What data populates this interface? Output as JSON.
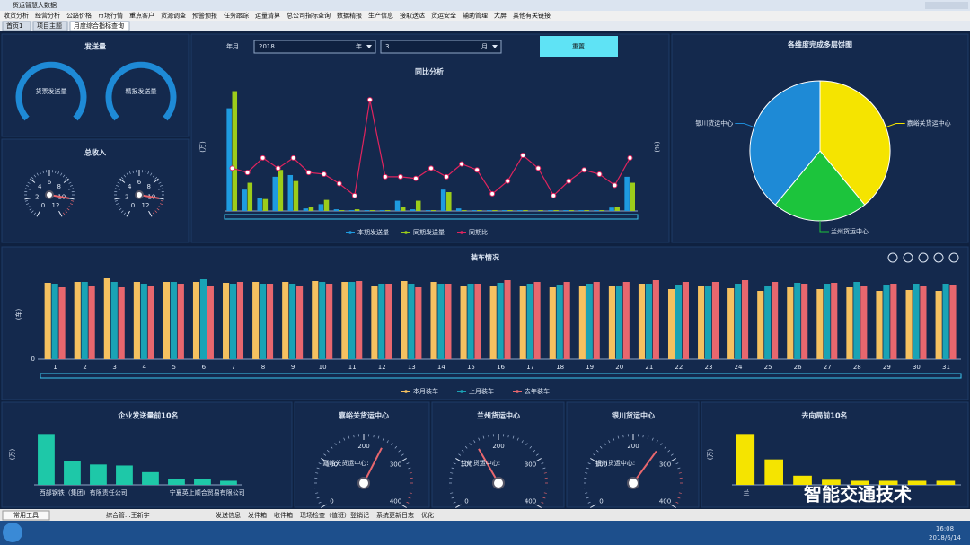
{
  "window_title": "货运智慧大数据",
  "menu": [
    "收货分析",
    "经营分析",
    "公路价格",
    "市场行情",
    "重点客户",
    "货源调查",
    "预警预报",
    "任务跟踪",
    "运量清算",
    "总公司指标查询",
    "数据精报",
    "生产信息",
    "接取送达",
    "货运安全",
    "辅助管理",
    "大屏",
    "其他有关链接"
  ],
  "tabs": [
    "首页1",
    "项目主题",
    "月度综合指标查询"
  ],
  "panels": {
    "send": "发送量",
    "income": "总收入"
  },
  "send_gauges": [
    "货票发送量",
    "精报发送量"
  ],
  "filters": {
    "label": "年月",
    "year": "2018",
    "year_unit": "年",
    "month": "3",
    "month_unit": "月",
    "reset": "重置"
  },
  "chart_data": [
    {
      "type": "bar",
      "title": "同比分析",
      "y_label": "(万)",
      "y2_label": "(%)",
      "categories": [
        null,
        null,
        null,
        null,
        null,
        null,
        null,
        null,
        null,
        null,
        null,
        null,
        null,
        null,
        null,
        null,
        null,
        null,
        null,
        null,
        null,
        null,
        null,
        null,
        null,
        null,
        null
      ],
      "ylim": [
        0,
        150
      ],
      "y2lim": [
        0,
        150
      ],
      "series": [
        {
          "name": "本期发送量",
          "color": "#1e9be0",
          "values": [
            120,
            25,
            15,
            40,
            42,
            3,
            8,
            2,
            1,
            1,
            1,
            12,
            2,
            1,
            25,
            3,
            1,
            1,
            1,
            1,
            0,
            1,
            1,
            1,
            1,
            4,
            40
          ]
        },
        {
          "name": "同期发送量",
          "color": "#9ccc1a",
          "values": [
            140,
            33,
            14,
            48,
            35,
            5,
            13,
            1,
            2,
            1,
            1,
            5,
            12,
            1,
            22,
            1,
            1,
            1,
            1,
            1,
            1,
            1,
            1,
            1,
            1,
            5,
            33
          ]
        },
        {
          "name": "同期比",
          "color": "#e0245e",
          "type": "line",
          "axis": "y2",
          "values": [
            50,
            45,
            62,
            50,
            62,
            45,
            43,
            32,
            18,
            130,
            40,
            40,
            38,
            50,
            40,
            55,
            48,
            20,
            35,
            65,
            50,
            18,
            35,
            48,
            43,
            30,
            62
          ]
        }
      ]
    },
    {
      "type": "pie",
      "title": "各维度完成多层饼图",
      "categories": [
        "嘉峪关货运中心",
        "兰州货运中心",
        "银川货运中心"
      ],
      "values": [
        39,
        22,
        39
      ],
      "colors": [
        "#f5e400",
        "#1cc43c",
        "#1e8ad6"
      ]
    },
    {
      "type": "bar",
      "title": "装车情况",
      "y_label": "(车)",
      "categories": [
        1,
        2,
        3,
        4,
        5,
        6,
        7,
        8,
        9,
        10,
        11,
        12,
        13,
        14,
        15,
        16,
        17,
        18,
        19,
        20,
        21,
        22,
        23,
        24,
        25,
        26,
        27,
        28,
        29,
        30,
        31
      ],
      "ylim": [
        0,
        100
      ],
      "yticks": [
        0
      ],
      "series": [
        {
          "name": "本月装车",
          "color": "#f5c160",
          "values": [
            85,
            86,
            90,
            86,
            86,
            86,
            85,
            86,
            86,
            87,
            86,
            82,
            87,
            86,
            82,
            81,
            82,
            80,
            82,
            82,
            84,
            78,
            81,
            79,
            76,
            80,
            78,
            80,
            76,
            77,
            76
          ]
        },
        {
          "name": "上月装车",
          "color": "#1aa3b5",
          "values": [
            84,
            86,
            86,
            84,
            86,
            89,
            84,
            84,
            84,
            86,
            86,
            84,
            84,
            84,
            84,
            85,
            84,
            83,
            84,
            82,
            84,
            83,
            82,
            84,
            82,
            85,
            84,
            86,
            83,
            84,
            84
          ]
        },
        {
          "name": "去年装车",
          "color": "#e8676e",
          "values": [
            80,
            81,
            80,
            82,
            84,
            82,
            86,
            84,
            82,
            84,
            87,
            84,
            80,
            84,
            84,
            88,
            86,
            86,
            86,
            86,
            88,
            86,
            86,
            88,
            86,
            84,
            85,
            82,
            84,
            82,
            83
          ]
        }
      ]
    },
    {
      "type": "bar",
      "title": "企业发送量前10名",
      "y_label": "(万)",
      "categories": [
        "西部钢铁（集团）有限责任公司",
        null,
        null,
        null,
        null,
        "宁夏英上顺合贸易有限公司",
        null,
        null
      ],
      "ylim": [
        0,
        120
      ],
      "color": "#1ec8a8",
      "values": [
        100,
        47,
        40,
        38,
        25,
        12,
        12,
        8
      ]
    },
    {
      "type": "gauge",
      "title": "嘉峪关货运中心",
      "label": "嘉峪关货运中心:",
      "range": [
        0,
        400
      ],
      "ticks": [
        0,
        100,
        200,
        300,
        400
      ],
      "value": 245
    },
    {
      "type": "gauge",
      "title": "兰州货运中心",
      "label": "兰州货运中心:",
      "range": [
        0,
        400
      ],
      "ticks": [
        0,
        100,
        200,
        300,
        400
      ],
      "value": 150
    },
    {
      "type": "gauge",
      "title": "银川货运中心",
      "label": "银川货运中心:",
      "range": [
        0,
        400
      ],
      "ticks": [
        0,
        100,
        200,
        300,
        400
      ],
      "value": 260
    },
    {
      "type": "bar",
      "title": "去向局前10名",
      "y_label": "(万)",
      "categories": [
        "兰",
        null,
        null,
        null,
        null,
        null,
        null,
        null
      ],
      "ylim": [
        0,
        120
      ],
      "color": "#f5e400",
      "values": [
        100,
        50,
        18,
        10,
        8,
        8,
        8,
        8
      ]
    },
    {
      "type": "gauge",
      "range": [
        0,
        12
      ],
      "ticks": [
        0,
        2,
        4,
        6,
        8,
        10,
        12
      ],
      "value": 10
    },
    {
      "type": "gauge",
      "range": [
        0,
        12
      ],
      "ticks": [
        0,
        2,
        4,
        6,
        8,
        10,
        12
      ],
      "value": 10
    }
  ],
  "watermark": "智能交通技术",
  "taskbar": {
    "tool": "常用工具",
    "user": "综合管...王新宇",
    "items": [
      "发送信息",
      "发件箱",
      "收件箱",
      "现场检查（值班）登销记",
      "系统更新日志",
      "优化"
    ],
    "time": "16:08",
    "date": "2018/6/14"
  }
}
